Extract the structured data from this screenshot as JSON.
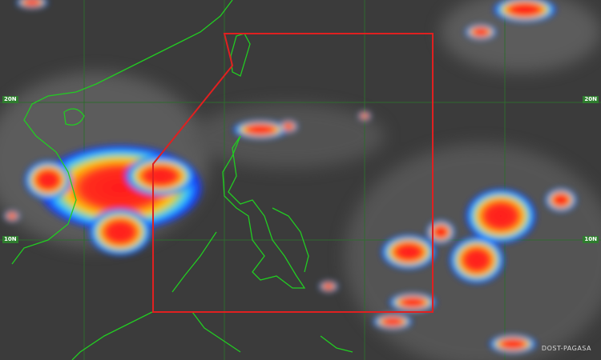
{
  "map": {
    "latitude_labels": [
      "20N",
      "10N"
    ],
    "credit": "DOST-PAGASA",
    "colors": {
      "background": "#3b3b3b",
      "coastline": "#22cc22",
      "gridline": "#2f6a2f",
      "boundary": "#e02020",
      "cloud_cold": "#ff2020",
      "cloud_mid": "#ffd000",
      "cloud_cool": "#20c0ff"
    }
  }
}
